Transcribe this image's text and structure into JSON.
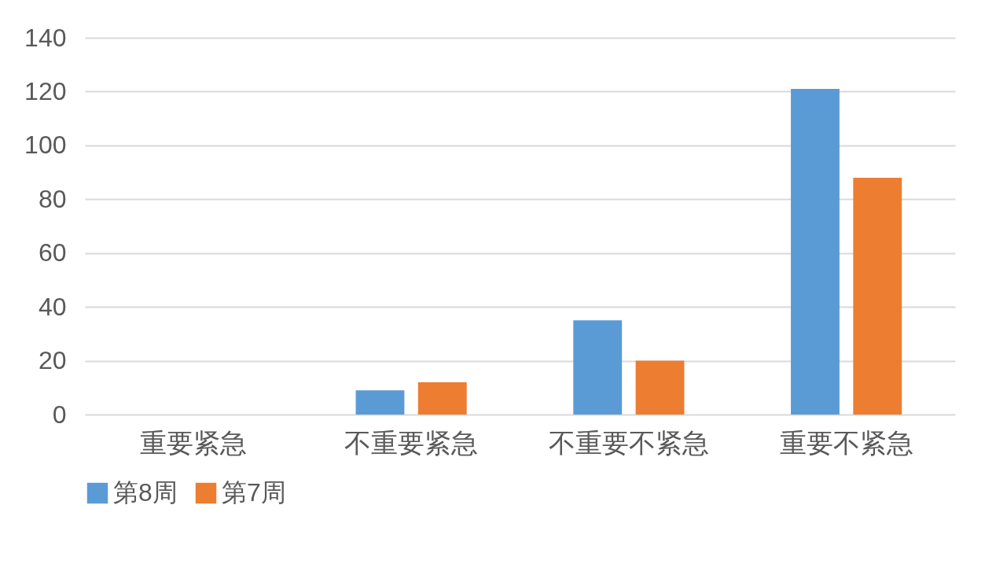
{
  "chart_data": {
    "type": "bar",
    "categories": [
      "重要紧急",
      "不重要紧急",
      "不重要不紧急",
      "重要不紧急"
    ],
    "series": [
      {
        "name": "第8周",
        "color": "#5b9bd5",
        "values": [
          0,
          9,
          35,
          121
        ]
      },
      {
        "name": "第7周",
        "color": "#ed7d31",
        "values": [
          0,
          12,
          20,
          88
        ]
      }
    ],
    "ylim": [
      0,
      140
    ],
    "yticks": [
      0,
      20,
      40,
      60,
      80,
      100,
      120,
      140
    ],
    "grid": "y",
    "legend": "bottom"
  }
}
